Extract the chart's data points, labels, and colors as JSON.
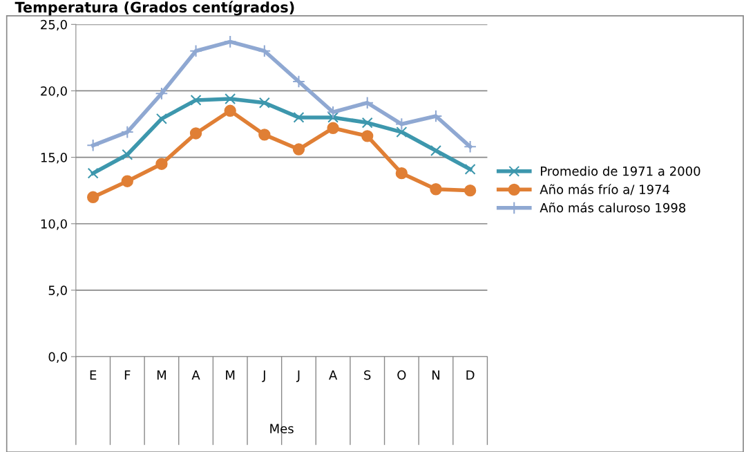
{
  "chart_data": {
    "type": "line",
    "title": "Temperatura (Grados centígrados)",
    "xlabel": "Mes",
    "categories": [
      "E",
      "F",
      "M",
      "A",
      "M",
      "J",
      "J",
      "A",
      "S",
      "O",
      "N",
      "D"
    ],
    "series": [
      {
        "name": "Promedio de 1971 a 2000",
        "color": "#3d97ad",
        "marker": "cross",
        "values": [
          13.8,
          15.2,
          17.9,
          19.3,
          19.4,
          19.1,
          18.0,
          18.0,
          17.6,
          16.9,
          15.5,
          14.1
        ]
      },
      {
        "name": "Año más frío a/ 1974",
        "color": "#e07f35",
        "marker": "circle",
        "values": [
          12.0,
          13.2,
          14.5,
          16.8,
          18.5,
          16.7,
          15.6,
          17.2,
          16.6,
          13.8,
          12.6,
          12.5
        ]
      },
      {
        "name": "Año más caluroso 1998",
        "color": "#8fa8d2",
        "marker": "plus",
        "values": [
          15.9,
          16.9,
          19.8,
          23.0,
          23.7,
          23.0,
          20.7,
          18.4,
          19.1,
          17.5,
          18.1,
          15.8
        ]
      }
    ],
    "ylim": [
      0,
      25
    ],
    "yticks": [
      {
        "value": 0,
        "label": "0,0"
      },
      {
        "value": 5,
        "label": "5,0"
      },
      {
        "value": 10,
        "label": "10,0"
      },
      {
        "value": 15,
        "label": "15,0"
      },
      {
        "value": 20,
        "label": "20,0"
      },
      {
        "value": 25,
        "label": "25,0"
      }
    ],
    "grid": "y",
    "legend": "right",
    "line_style": "solid"
  }
}
